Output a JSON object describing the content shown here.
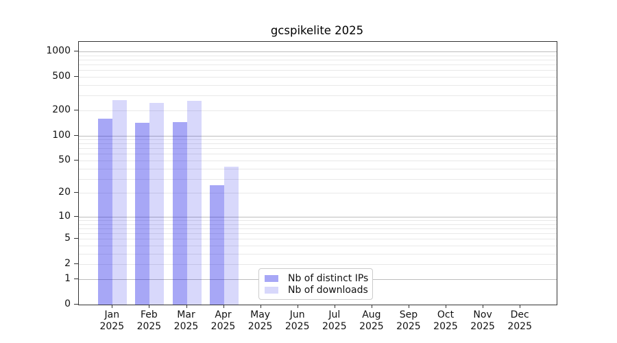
{
  "chart_data": {
    "type": "bar",
    "title": "gcspikelite 2025",
    "y_scale": "log1p",
    "ylim": [
      0,
      1000
    ],
    "grid": "both",
    "legend_position": "lower-center",
    "y_ticks": [
      0,
      1,
      2,
      5,
      10,
      20,
      50,
      100,
      200,
      500,
      1000
    ],
    "y_major_gridlines": [
      1,
      10,
      100,
      1000
    ],
    "categories": [
      {
        "label": "Jan",
        "sub": "2025"
      },
      {
        "label": "Feb",
        "sub": "2025"
      },
      {
        "label": "Mar",
        "sub": "2025"
      },
      {
        "label": "Apr",
        "sub": "2025"
      },
      {
        "label": "May",
        "sub": "2025"
      },
      {
        "label": "Jun",
        "sub": "2025"
      },
      {
        "label": "Jul",
        "sub": "2025"
      },
      {
        "label": "Aug",
        "sub": "2025"
      },
      {
        "label": "Sep",
        "sub": "2025"
      },
      {
        "label": "Oct",
        "sub": "2025"
      },
      {
        "label": "Nov",
        "sub": "2025"
      },
      {
        "label": "Dec",
        "sub": "2025"
      }
    ],
    "series": [
      {
        "name": "Nb of distinct IPs",
        "key": "distinct-ips",
        "color": "rgba(10,10,230,0.36)",
        "values": [
          160,
          141,
          144,
          25,
          0,
          0,
          0,
          0,
          0,
          0,
          0,
          0
        ]
      },
      {
        "name": "Nb of downloads",
        "key": "downloads",
        "color": "rgba(10,10,230,0.16)",
        "values": [
          265,
          247,
          258,
          42,
          0,
          0,
          0,
          0,
          0,
          0,
          0,
          0
        ]
      }
    ],
    "colors": {
      "grid_major": "#bdbdbd",
      "grid_minor": "#e8e8e8",
      "axis": "#333333",
      "text": "#111111",
      "background": "#ffffff",
      "legend_border": "#cbcbcb"
    }
  }
}
